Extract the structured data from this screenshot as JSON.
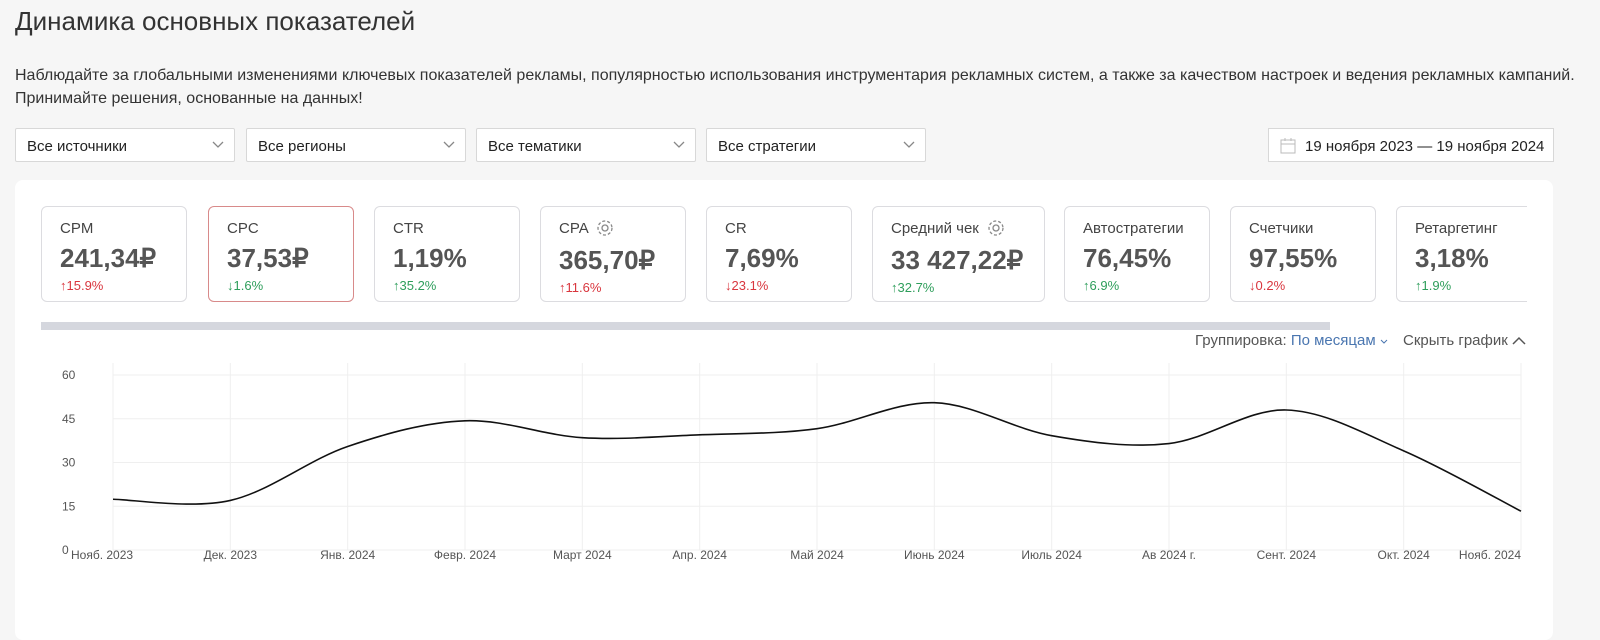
{
  "header": {
    "title": "Динамика основных показателей",
    "description": "Наблюдайте за глобальными изменениями ключевых показателей рекламы, популярностью использования инструментария рекламных систем, а также за качеством настроек и ведения рекламных кампаний. Принимайте решения, основанные на данных!"
  },
  "filters": [
    "Все источники",
    "Все регионы",
    "Все тематики",
    "Все стратегии"
  ],
  "date_range": "19 ноября 2023 — 19 ноября 2024",
  "metrics": [
    {
      "name": "CPM",
      "value": "241,34₽",
      "change": "↑15.9%",
      "color": "#d9363e"
    },
    {
      "name": "CPC",
      "value": "37,53₽",
      "change": "↓1.6%",
      "color": "#2e9e5b"
    },
    {
      "name": "CTR",
      "value": "1,19%",
      "change": "↑35.2%",
      "color": "#2e9e5b"
    },
    {
      "name": "CPA",
      "value": "365,70₽",
      "change": "↑11.6%",
      "color": "#d9363e"
    },
    {
      "name": "CR",
      "value": "7,69%",
      "change": "↓23.1%",
      "color": "#d9363e"
    },
    {
      "name": "Средний чек",
      "value": "33 427,22₽",
      "change": "↑32.7%",
      "color": "#2e9e5b"
    },
    {
      "name": "Автостратегии",
      "value": "76,45%",
      "change": "↑6.9%",
      "color": "#2e9e5b"
    },
    {
      "name": "Счетчики",
      "value": "97,55%",
      "change": "↓0.2%",
      "color": "#d9363e"
    },
    {
      "name": "Ретаргетинг",
      "value": "3,18%",
      "change": "↑1.9%",
      "color": "#2e9e5b"
    }
  ],
  "controls": {
    "grouping_label": "Группировка:",
    "grouping_value": "По месяцам",
    "hide_chart": "Скрыть график"
  },
  "chart_data": {
    "type": "line",
    "categories": [
      "Нояб. 2023",
      "Дек. 2023",
      "Янв. 2024",
      "Февр. 2024",
      "Март 2024",
      "Апр. 2024",
      "Май 2024",
      "Июнь 2024",
      "Июль 2024",
      "Ав 2024 г.",
      "Сент. 2024",
      "Окт. 2024",
      "Нояб. 2024"
    ],
    "values": [
      17.4,
      17,
      35.5,
      44.3,
      38.5,
      39.5,
      41.6,
      50.5,
      39.2,
      36.5,
      48,
      34,
      13.3
    ],
    "color": "#111111",
    "ylim": [
      0,
      60
    ],
    "yticks": [
      0,
      15,
      30,
      45,
      60
    ],
    "grid": true
  }
}
